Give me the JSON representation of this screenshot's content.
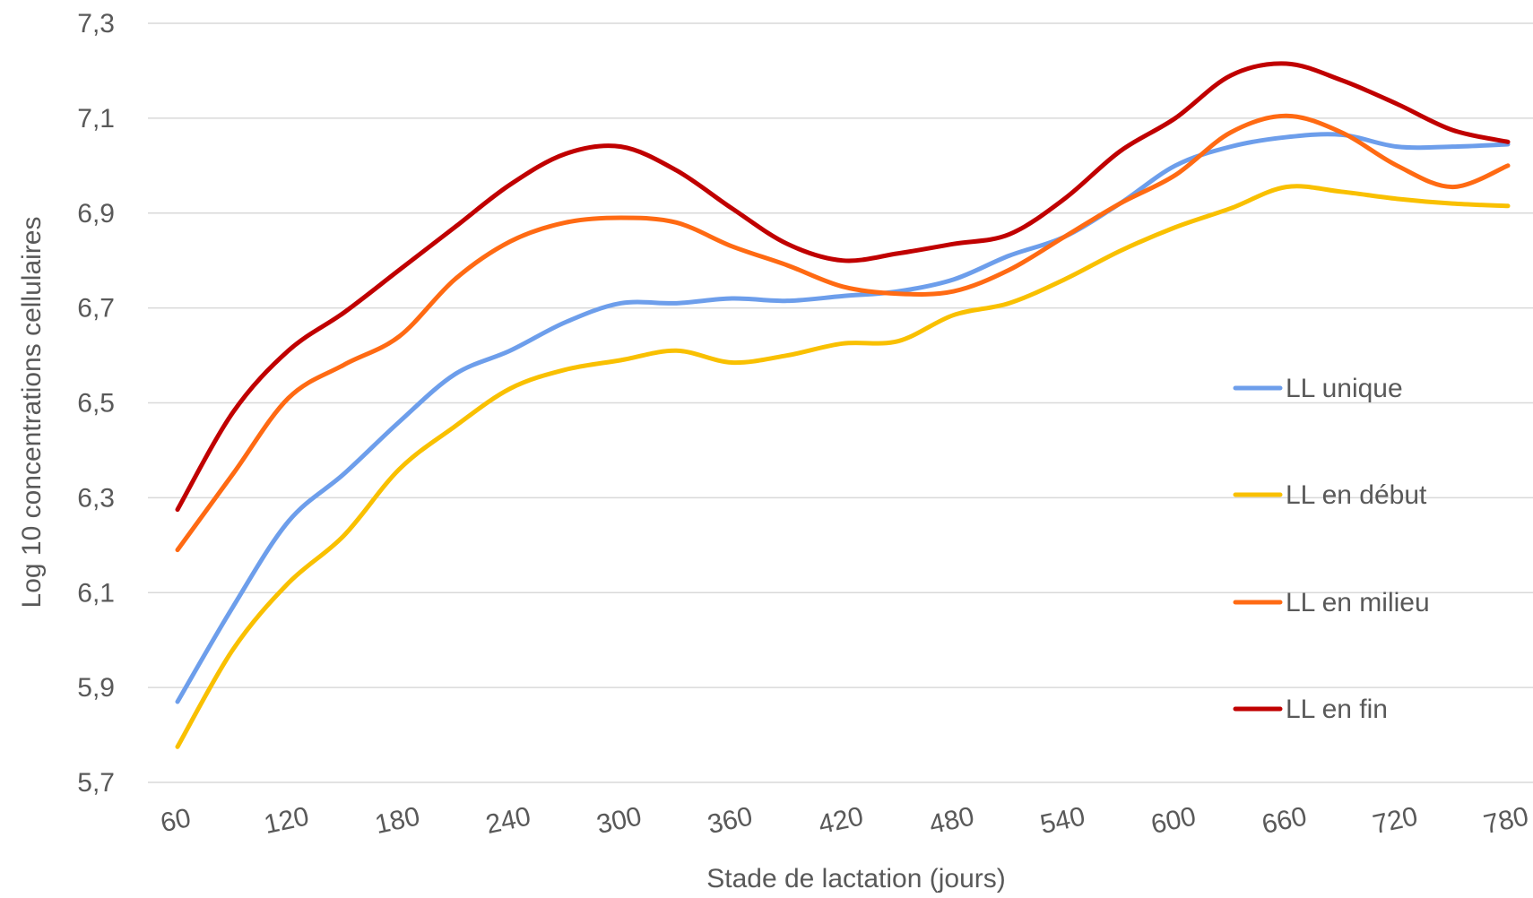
{
  "chart_data": {
    "type": "line",
    "title": "",
    "xlabel": "Stade de lactation (jours)",
    "ylabel": "Log 10 concentrations cellulaires",
    "x": [
      60,
      120,
      180,
      240,
      300,
      360,
      420,
      480,
      540,
      600,
      660,
      720,
      780
    ],
    "x_ticks": [
      "60",
      "120",
      "180",
      "240",
      "300",
      "360",
      "420",
      "480",
      "540",
      "600",
      "660",
      "720",
      "780"
    ],
    "ylim": [
      5.7,
      7.3
    ],
    "y_ticks": [
      "5,7",
      "5,9",
      "6,1",
      "6,3",
      "6,5",
      "6,7",
      "6,9",
      "7,1",
      "7,3"
    ],
    "grid": true,
    "legend_position": "right",
    "series": [
      {
        "name": "LL unique",
        "color": "#6d9eeb",
        "points": [
          [
            60,
            5.87
          ],
          [
            90,
            6.07
          ],
          [
            120,
            6.25
          ],
          [
            150,
            6.35
          ],
          [
            180,
            6.46
          ],
          [
            210,
            6.56
          ],
          [
            240,
            6.61
          ],
          [
            270,
            6.67
          ],
          [
            300,
            6.71
          ],
          [
            330,
            6.71
          ],
          [
            360,
            6.72
          ],
          [
            390,
            6.715
          ],
          [
            420,
            6.725
          ],
          [
            450,
            6.735
          ],
          [
            480,
            6.76
          ],
          [
            510,
            6.81
          ],
          [
            540,
            6.85
          ],
          [
            570,
            6.92
          ],
          [
            600,
            7.0
          ],
          [
            630,
            7.04
          ],
          [
            660,
            7.06
          ],
          [
            690,
            7.065
          ],
          [
            720,
            7.04
          ],
          [
            750,
            7.04
          ],
          [
            780,
            7.045
          ]
        ]
      },
      {
        "name": "LL en début",
        "color": "#f9c000",
        "points": [
          [
            60,
            5.775
          ],
          [
            90,
            5.98
          ],
          [
            120,
            6.12
          ],
          [
            150,
            6.22
          ],
          [
            180,
            6.36
          ],
          [
            210,
            6.45
          ],
          [
            240,
            6.53
          ],
          [
            270,
            6.57
          ],
          [
            300,
            6.59
          ],
          [
            330,
            6.61
          ],
          [
            360,
            6.585
          ],
          [
            390,
            6.6
          ],
          [
            420,
            6.625
          ],
          [
            450,
            6.63
          ],
          [
            480,
            6.685
          ],
          [
            510,
            6.71
          ],
          [
            540,
            6.76
          ],
          [
            570,
            6.82
          ],
          [
            600,
            6.87
          ],
          [
            630,
            6.91
          ],
          [
            660,
            6.955
          ],
          [
            690,
            6.945
          ],
          [
            720,
            6.93
          ],
          [
            750,
            6.92
          ],
          [
            780,
            6.915
          ]
        ]
      },
      {
        "name": "LL en milieu",
        "color": "#ff6a13",
        "points": [
          [
            60,
            6.19
          ],
          [
            90,
            6.35
          ],
          [
            120,
            6.51
          ],
          [
            150,
            6.58
          ],
          [
            180,
            6.64
          ],
          [
            210,
            6.76
          ],
          [
            240,
            6.84
          ],
          [
            270,
            6.88
          ],
          [
            300,
            6.89
          ],
          [
            330,
            6.88
          ],
          [
            360,
            6.83
          ],
          [
            390,
            6.79
          ],
          [
            420,
            6.745
          ],
          [
            450,
            6.73
          ],
          [
            480,
            6.735
          ],
          [
            510,
            6.78
          ],
          [
            540,
            6.85
          ],
          [
            570,
            6.92
          ],
          [
            600,
            6.98
          ],
          [
            630,
            7.07
          ],
          [
            660,
            7.105
          ],
          [
            690,
            7.07
          ],
          [
            720,
            7.0
          ],
          [
            750,
            6.955
          ],
          [
            780,
            7.0
          ]
        ]
      },
      {
        "name": "LL en fin",
        "color": "#c00000",
        "points": [
          [
            60,
            6.275
          ],
          [
            90,
            6.48
          ],
          [
            120,
            6.61
          ],
          [
            150,
            6.69
          ],
          [
            180,
            6.78
          ],
          [
            210,
            6.87
          ],
          [
            240,
            6.96
          ],
          [
            270,
            7.025
          ],
          [
            300,
            7.04
          ],
          [
            330,
            6.99
          ],
          [
            360,
            6.91
          ],
          [
            390,
            6.835
          ],
          [
            420,
            6.8
          ],
          [
            450,
            6.815
          ],
          [
            480,
            6.835
          ],
          [
            510,
            6.855
          ],
          [
            540,
            6.93
          ],
          [
            570,
            7.03
          ],
          [
            600,
            7.1
          ],
          [
            630,
            7.19
          ],
          [
            660,
            7.215
          ],
          [
            690,
            7.18
          ],
          [
            720,
            7.13
          ],
          [
            750,
            7.075
          ],
          [
            780,
            7.05
          ]
        ]
      }
    ]
  }
}
